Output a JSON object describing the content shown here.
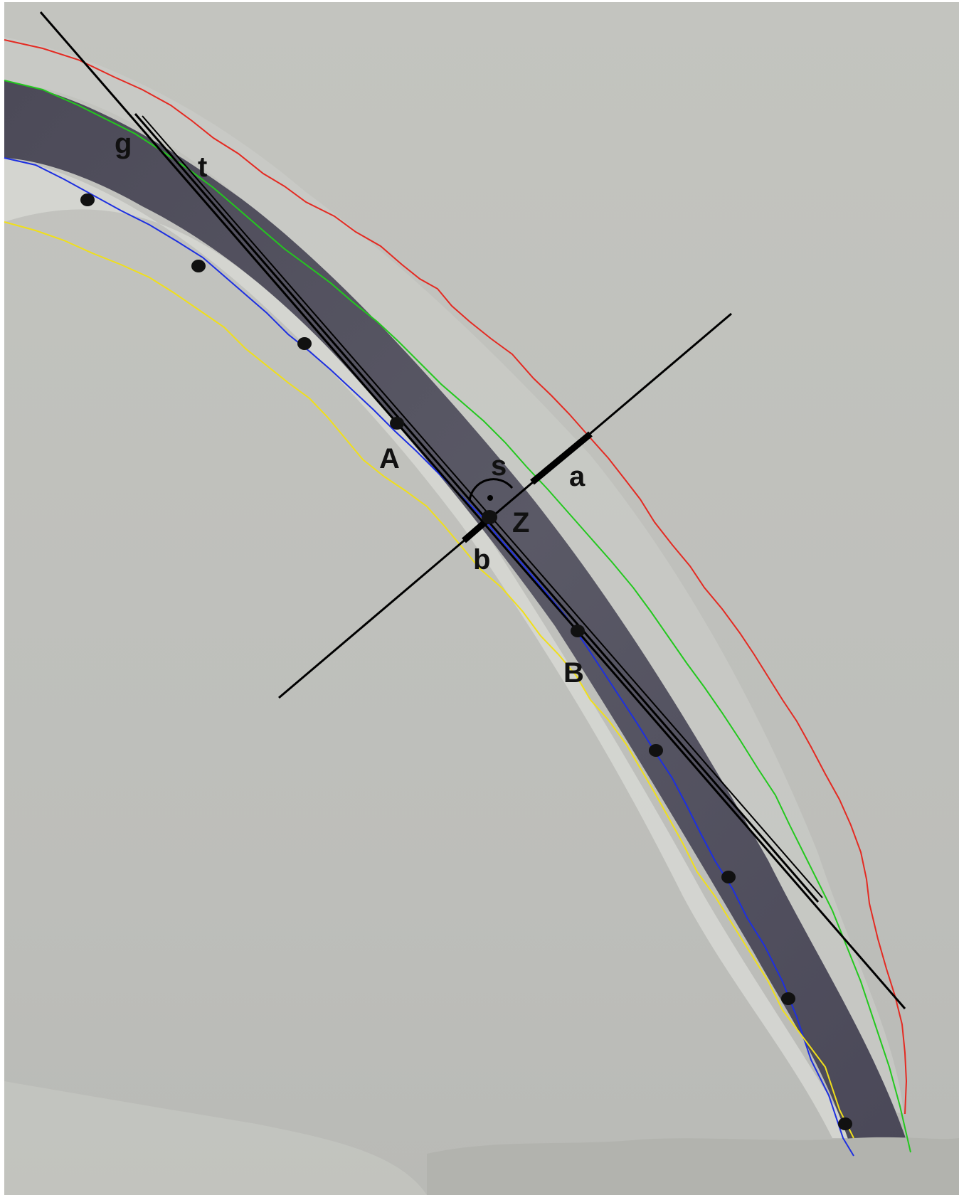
{
  "diagram": {
    "labels": {
      "g": "g",
      "t": "t",
      "A": "A",
      "B": "B",
      "s": "s",
      "a": "a",
      "Z": "Z",
      "b": "b"
    },
    "colors": {
      "outer_edge": "#e42a22",
      "upper_edge": "#23c81e",
      "lower_edge": "#1d2fe0",
      "inner_edge": "#f0df1a",
      "construction_lines": "#000000",
      "background": "#bfc0bb",
      "dark_band": "#4a4957"
    }
  }
}
